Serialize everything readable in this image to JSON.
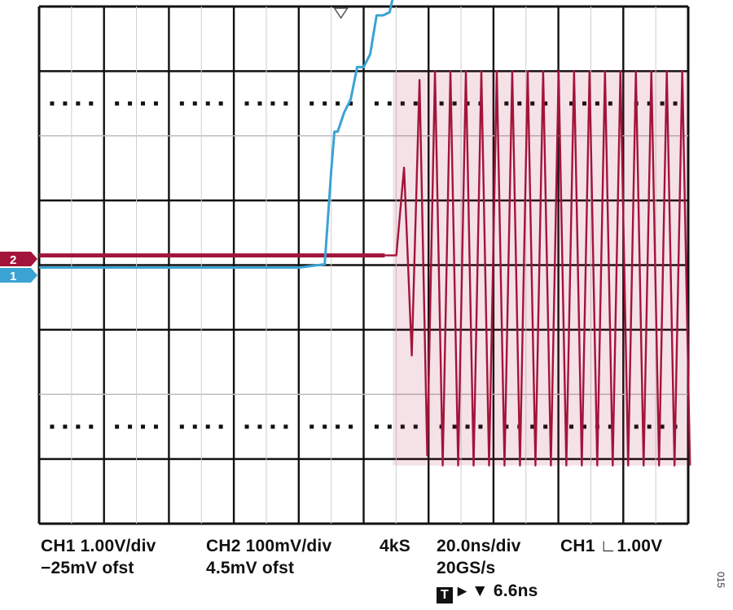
{
  "chart_data": {
    "type": "line",
    "title": "",
    "grid": true,
    "grid_divisions": {
      "horizontal": 10,
      "vertical": 8
    },
    "xlim": [
      -100,
      100
    ],
    "x_unit": "ns",
    "series": [
      {
        "name": "1",
        "marker_label": "1",
        "color": "#3aa3d4",
        "volts_per_div": 1.0,
        "x": [
          -100,
          -20,
          -12,
          -10,
          -9,
          -8,
          -6,
          -4,
          -2,
          0,
          2,
          4,
          6,
          8,
          10,
          12,
          14,
          16,
          18,
          20,
          30,
          40,
          50,
          60,
          70,
          80,
          90,
          100
        ],
        "y": [
          0,
          0,
          0.05,
          1.5,
          2.1,
          2.1,
          2.4,
          2.6,
          3.1,
          3.1,
          3.3,
          3.9,
          3.9,
          3.95,
          4.4,
          4.25,
          4.45,
          4.2,
          4.4,
          4.3,
          4.35,
          4.3,
          4.32,
          4.3,
          4.33,
          4.3,
          4.32,
          4.35
        ]
      },
      {
        "name": "2",
        "marker_label": "2",
        "color": "#a3143a",
        "volts_per_div": 0.1,
        "envelope": {
          "start_ns": 6.5,
          "high_div": 3.0,
          "low_div": -3.1
        },
        "baseline_div": 0.1,
        "cycles_per_div": 4.2
      }
    ]
  },
  "readouts": {
    "ch1_scale": "CH1  1.00V/div",
    "ch1_offset": "−25mV ofst",
    "ch2_scale": "CH2  100mV/div",
    "ch2_offset": "4.5mV ofst",
    "record_length": "4kS",
    "timebase": "20.0ns/div",
    "sample_rate": "20GS/s",
    "trigger_source": "CH1",
    "trigger_edge_symbol": "∟",
    "trigger_level": "1.00V",
    "trigger_box": "T",
    "trigger_position": "▸ ▼ 6.6ns"
  },
  "figure_id": "015"
}
